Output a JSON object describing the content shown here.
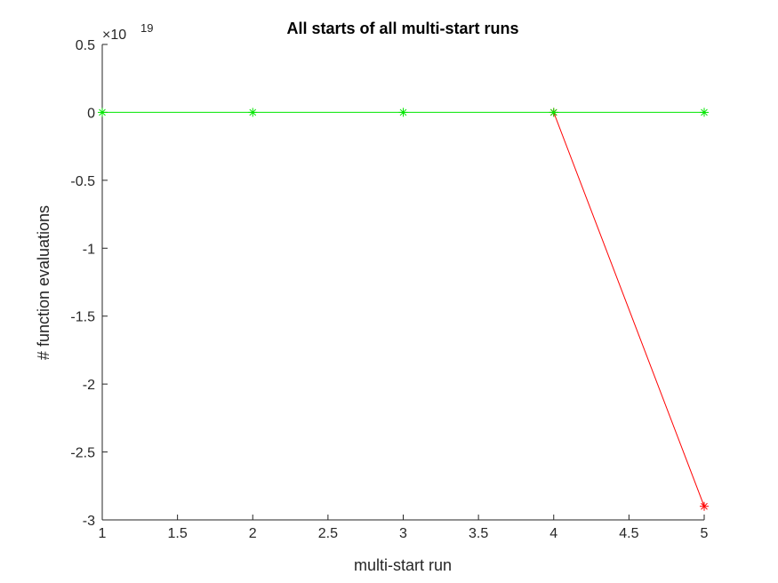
{
  "chart_data": {
    "type": "line",
    "title": "All starts of all multi-start runs",
    "xlabel": "multi-start run",
    "ylabel": "# function evaluations",
    "xlim": [
      1,
      5
    ],
    "ylim": [
      -3e+19,
      5e+18
    ],
    "y_multiplier_base": "×10",
    "y_multiplier_exponent": "19",
    "grid": false,
    "x_ticks": [
      1,
      1.5,
      2,
      2.5,
      3,
      3.5,
      4,
      4.5,
      5
    ],
    "x_tick_labels": [
      "1",
      "1.5",
      "2",
      "2.5",
      "3",
      "3.5",
      "4",
      "4.5",
      "5"
    ],
    "y_ticks": [
      5e+18,
      0,
      -5e+18,
      -1e+19,
      -1.5e+19,
      -2e+19,
      -2.5e+19,
      -3e+19
    ],
    "y_tick_labels": [
      "0.5",
      "0",
      "-0.5",
      "-1",
      "-1.5",
      "-2",
      "-2.5",
      "-3"
    ],
    "series": [
      {
        "color": "#ff0000",
        "marker": "asterisk",
        "x": [
          4,
          5
        ],
        "y": [
          0,
          -2.9e+19
        ]
      },
      {
        "color": "#00e600",
        "marker": "asterisk",
        "x": [
          1,
          2,
          3,
          4,
          5
        ],
        "y": [
          0,
          0,
          0,
          0,
          0
        ]
      }
    ]
  }
}
